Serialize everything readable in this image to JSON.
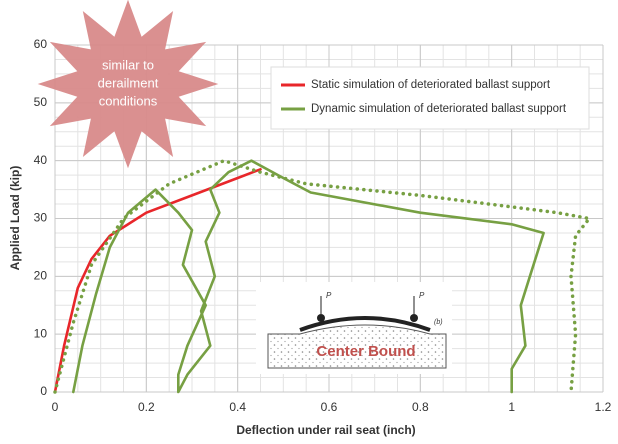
{
  "chart_data": {
    "type": "line",
    "xlabel": "Deflection under rail seat (inch)",
    "ylabel": "Applied Load (kip)",
    "xlim": [
      0,
      1.2
    ],
    "ylim": [
      0,
      60
    ],
    "xticks": [
      0,
      0.2,
      0.4,
      0.6,
      0.8,
      1,
      1.2
    ],
    "yticks": [
      0,
      10,
      20,
      30,
      40,
      50,
      60
    ],
    "grid": true,
    "minor_grid": true,
    "legend": "upper right",
    "series": [
      {
        "name": "Static simulation of deteriorated ballast support",
        "color": "#e8262a",
        "style": "solid",
        "x": [
          0,
          0.02,
          0.05,
          0.08,
          0.12,
          0.2,
          0.3,
          0.4,
          0.45
        ],
        "values": [
          0,
          8,
          18,
          23,
          27,
          31,
          34,
          37,
          38.5
        ]
      },
      {
        "name": "Dynamic simulation of deteriorated ballast support",
        "color": "#77a043",
        "style": "solid",
        "x": [
          0.04,
          0.06,
          0.09,
          0.12,
          0.16,
          0.22,
          0.27,
          0.3,
          0.28,
          0.33,
          0.29,
          0.27,
          0.27,
          0.29,
          0.34,
          0.32,
          0.35,
          0.33,
          0.36,
          0.34,
          0.38,
          0.43,
          0.5,
          0.56,
          0.8,
          1.0,
          1.07,
          1.04,
          1.02,
          1.03,
          1.0,
          1.0
        ],
        "values": [
          0,
          8,
          17,
          25,
          31,
          35,
          31,
          28,
          22,
          15,
          8,
          3,
          0,
          3,
          8,
          14,
          20,
          26,
          31,
          35,
          38,
          40,
          37,
          34.5,
          31,
          29,
          27.5,
          20,
          15,
          8,
          4,
          0
        ]
      },
      {
        "color": "#77a043",
        "style": "dotted",
        "x": [
          0,
          0.04,
          0.08,
          0.15,
          0.25,
          0.37,
          0.45,
          0.55,
          0.8,
          1.0,
          1.1,
          1.17,
          1.14,
          1.13,
          1.14,
          1.13
        ],
        "values": [
          0,
          12,
          22,
          30,
          36,
          40,
          38,
          36,
          34,
          32,
          31,
          30,
          27,
          20,
          10,
          0
        ]
      }
    ],
    "annotations": {
      "star_text": [
        "similar to",
        "derailment",
        "conditions"
      ],
      "inset_label": "Center Bound",
      "inset_load": "P",
      "inset_tag": "(b)"
    }
  }
}
